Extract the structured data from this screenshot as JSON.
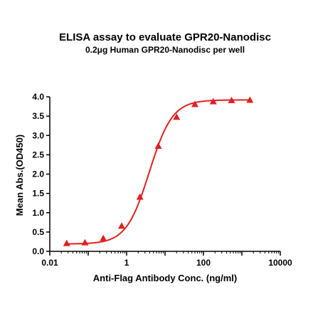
{
  "chart_data": {
    "type": "scatter",
    "title": "ELISA assay to evaluate GPR20-Nanodisc",
    "subtitle": "0.2μg Human GPR20-Nanodisc per well",
    "xlabel": "Anti-Flag Antibody Conc. (ng/ml)",
    "ylabel": "Mean Abs.(OD450)",
    "x_scale": "log",
    "xlim": [
      0.01,
      10000
    ],
    "ylim": [
      0,
      4.0
    ],
    "x_ticks": [
      0.01,
      1,
      100,
      10000
    ],
    "x_tick_labels": [
      "0.01",
      "1",
      "100",
      "10000"
    ],
    "y_ticks": [
      0.0,
      0.5,
      1.0,
      1.5,
      2.0,
      2.5,
      3.0,
      3.5,
      4.0
    ],
    "y_tick_labels": [
      "0.0",
      "0.5",
      "1.0",
      "1.5",
      "2.0",
      "2.5",
      "3.0",
      "3.5",
      "4.0"
    ],
    "grid": false,
    "color": "#e02020",
    "marker": "triangle",
    "series": [
      {
        "x": [
          0.0275,
          0.0824,
          0.247,
          0.741,
          2.22,
          6.67,
          20,
          60,
          180,
          540,
          1620
        ],
        "y": [
          0.2,
          0.22,
          0.33,
          0.65,
          1.4,
          2.72,
          3.47,
          3.8,
          3.87,
          3.9,
          3.91
        ],
        "fit": "4PL"
      }
    ],
    "fit_params": {
      "bottom": 0.19,
      "top": 3.92,
      "ec50": 3.9,
      "hill": 1.45
    }
  }
}
